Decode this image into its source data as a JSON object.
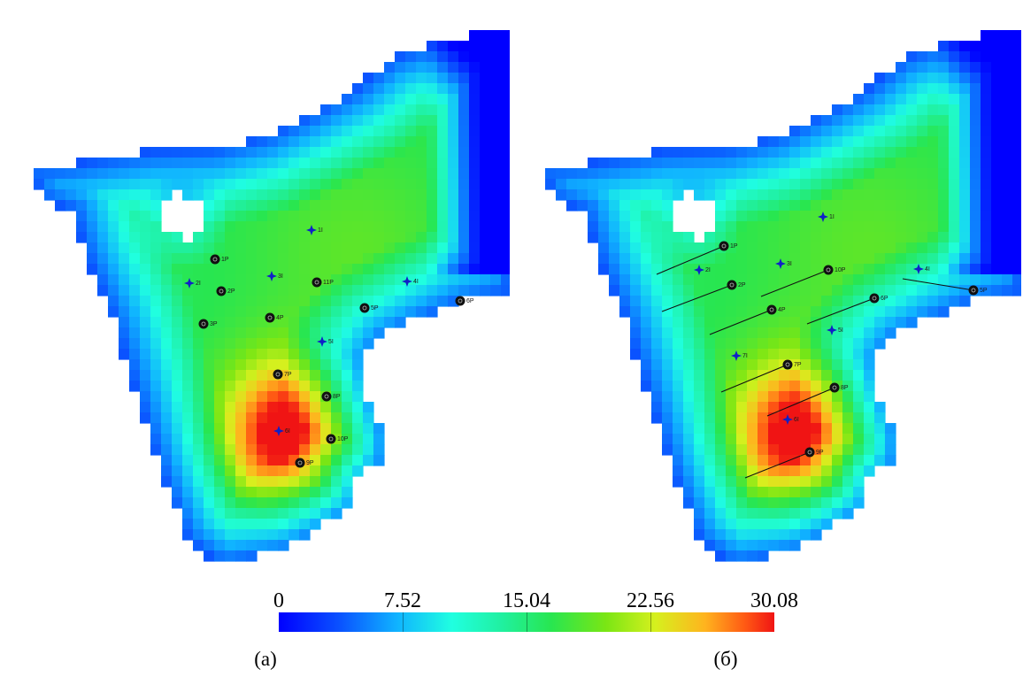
{
  "scale": {
    "min": 0,
    "max": 30.08,
    "ticks": [
      "0",
      "7.52",
      "15.04",
      "22.56",
      "30.08"
    ]
  },
  "panels": [
    {
      "label": "(а)",
      "wells": [
        {
          "name": "1I",
          "type": "injector"
        },
        {
          "name": "2I",
          "type": "injector"
        },
        {
          "name": "3I",
          "type": "injector"
        },
        {
          "name": "4I",
          "type": "injector"
        },
        {
          "name": "5I",
          "type": "injector"
        },
        {
          "name": "6I",
          "type": "injector"
        },
        {
          "name": "1P",
          "type": "producer"
        },
        {
          "name": "2P",
          "type": "producer"
        },
        {
          "name": "3P",
          "type": "producer"
        },
        {
          "name": "4P",
          "type": "producer"
        },
        {
          "name": "5P",
          "type": "producer"
        },
        {
          "name": "6P",
          "type": "producer"
        },
        {
          "name": "7P",
          "type": "producer"
        },
        {
          "name": "8P",
          "type": "producer"
        },
        {
          "name": "9P",
          "type": "producer"
        },
        {
          "name": "10P",
          "type": "producer"
        },
        {
          "name": "11P",
          "type": "producer"
        }
      ]
    },
    {
      "label": "(б)",
      "wells": [
        {
          "name": "1I",
          "type": "injector"
        },
        {
          "name": "2I",
          "type": "injector"
        },
        {
          "name": "3I",
          "type": "injector"
        },
        {
          "name": "4I",
          "type": "injector"
        },
        {
          "name": "5I",
          "type": "injector"
        },
        {
          "name": "6I",
          "type": "injector"
        },
        {
          "name": "7I",
          "type": "injector"
        },
        {
          "name": "1P",
          "type": "producer"
        },
        {
          "name": "2P",
          "type": "producer"
        },
        {
          "name": "4P",
          "type": "producer"
        },
        {
          "name": "5P",
          "type": "producer"
        },
        {
          "name": "6P",
          "type": "producer"
        },
        {
          "name": "7P",
          "type": "producer"
        },
        {
          "name": "8P",
          "type": "producer"
        },
        {
          "name": "9P",
          "type": "producer"
        },
        {
          "name": "10P",
          "type": "producer"
        }
      ]
    }
  ],
  "colors": {
    "low": "#0000ff",
    "mid_low": "#20e0ff",
    "mid": "#28e650",
    "mid_high": "#e6f01e",
    "high": "#f01414",
    "injector": "#1020c8",
    "producer": "#111111"
  }
}
